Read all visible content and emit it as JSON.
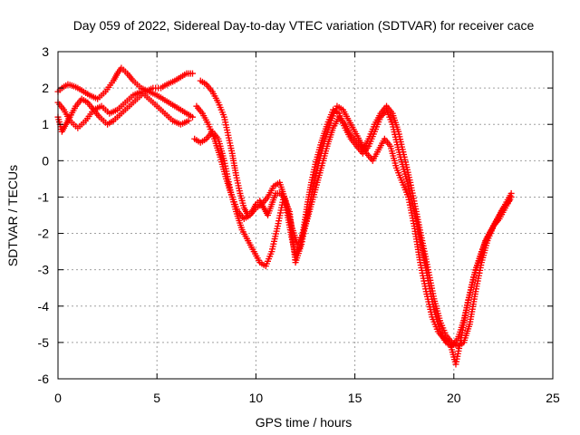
{
  "chart_data": {
    "type": "scatter",
    "title": "Day 059 of 2022, Sidereal Day-to-day VTEC variation (SDTVAR) for receiver cace",
    "xlabel": "GPS time / hours",
    "ylabel": "SDTVAR / TECUs",
    "xlim": [
      0,
      25
    ],
    "ylim": [
      -6,
      3
    ],
    "xticks": [
      0,
      5,
      10,
      15,
      20,
      25
    ],
    "yticks": [
      -6,
      -5,
      -4,
      -3,
      -2,
      -1,
      0,
      1,
      2,
      3
    ],
    "grid": true,
    "legend": "none",
    "marker": "+",
    "color": "#ff0000",
    "series": [
      {
        "x": [
          0,
          0.2,
          0.5,
          0.8,
          1.0,
          1.3,
          1.6,
          2.0,
          2.4,
          2.8,
          3.0,
          3.2,
          3.5,
          3.8,
          4.2,
          4.6,
          5.0,
          5.3,
          5.6,
          5.9,
          6.2,
          6.5,
          6.8
        ],
        "y": [
          1.9,
          2.0,
          2.1,
          2.05,
          2.0,
          1.9,
          1.8,
          1.7,
          1.9,
          2.2,
          2.4,
          2.55,
          2.4,
          2.2,
          2.0,
          1.9,
          1.8,
          1.7,
          1.6,
          1.5,
          1.4,
          1.3,
          1.2
        ]
      },
      {
        "x": [
          0,
          0.2,
          0.4,
          0.6,
          0.9,
          1.2,
          1.5,
          1.8,
          2.1,
          2.5,
          2.8,
          3.2,
          3.6,
          4.0,
          4.4,
          4.8,
          5.2,
          5.5,
          5.9,
          6.2,
          6.5,
          6.8
        ],
        "y": [
          1.2,
          0.8,
          1.0,
          1.2,
          1.5,
          1.7,
          1.6,
          1.4,
          1.2,
          1.0,
          1.1,
          1.3,
          1.5,
          1.7,
          1.9,
          2.0,
          2.0,
          2.1,
          2.2,
          2.3,
          2.4,
          2.4
        ]
      },
      {
        "x": [
          0,
          0.3,
          0.6,
          1.0,
          1.4,
          1.8,
          2.2,
          2.6,
          3.0,
          3.4,
          3.8,
          4.2,
          4.6,
          5.0,
          5.4,
          5.8,
          6.2,
          6.6
        ],
        "y": [
          1.6,
          1.4,
          1.1,
          0.9,
          1.1,
          1.4,
          1.5,
          1.3,
          1.4,
          1.6,
          1.8,
          1.9,
          1.7,
          1.5,
          1.3,
          1.1,
          1.0,
          1.1
        ]
      },
      {
        "x": [
          7.2,
          7.5,
          7.8,
          8.1,
          8.4,
          8.6,
          8.8,
          9.0,
          9.2,
          9.4,
          9.6,
          9.8,
          10.0,
          10.2,
          10.4,
          10.6,
          10.8,
          11.0,
          11.2,
          11.4,
          11.6,
          11.8,
          12.0,
          12.2,
          12.4,
          12.6,
          12.8,
          13.0,
          13.3,
          13.6,
          13.9,
          14.2,
          14.5,
          14.8,
          15.1,
          15.4,
          15.7,
          16.0,
          16.3,
          16.6,
          16.9,
          17.2,
          17.5,
          17.8,
          18.1,
          18.4,
          18.7,
          19.0,
          19.3,
          19.6,
          19.9,
          20.2,
          20.5,
          20.8,
          21.1,
          21.4,
          21.7,
          22.0,
          22.3,
          22.6,
          22.9
        ],
        "y": [
          2.2,
          2.1,
          1.9,
          1.6,
          1.2,
          0.7,
          0.2,
          -0.4,
          -0.9,
          -1.3,
          -1.5,
          -1.4,
          -1.2,
          -1.1,
          -1.3,
          -1.5,
          -1.2,
          -0.9,
          -0.9,
          -1.0,
          -1.5,
          -2.1,
          -2.6,
          -2.4,
          -1.9,
          -1.2,
          -0.6,
          -0.1,
          0.5,
          1.0,
          1.4,
          1.3,
          0.9,
          0.6,
          0.4,
          0.2,
          0.4,
          0.8,
          1.2,
          1.4,
          1.0,
          0.3,
          -0.3,
          -0.9,
          -1.6,
          -2.4,
          -3.3,
          -4.1,
          -4.7,
          -5.0,
          -5.1,
          -4.9,
          -4.4,
          -3.7,
          -3.0,
          -2.5,
          -2.1,
          -1.8,
          -1.6,
          -1.3,
          -1.0
        ]
      },
      {
        "x": [
          7.0,
          7.3,
          7.6,
          7.9,
          8.2,
          8.5,
          8.8,
          9.1,
          9.4,
          9.7,
          10.0,
          10.3,
          10.6,
          10.9,
          11.2,
          11.5,
          11.8,
          12.1,
          12.4,
          12.7,
          13.0,
          13.3,
          13.6,
          13.9,
          14.2,
          14.5,
          14.8,
          15.1,
          15.4,
          15.7,
          16.0,
          16.3,
          16.6,
          16.9,
          17.2,
          17.5,
          17.8,
          18.1,
          18.4,
          18.7,
          19.0,
          19.3,
          19.6,
          19.9,
          20.2,
          20.5,
          20.8,
          21.1,
          21.4,
          21.7,
          22.0,
          22.3,
          22.6,
          22.9
        ],
        "y": [
          1.5,
          1.3,
          1.0,
          0.6,
          0.1,
          -0.5,
          -1.0,
          -1.4,
          -1.6,
          -1.5,
          -1.3,
          -1.2,
          -1.0,
          -0.7,
          -0.6,
          -1.1,
          -1.8,
          -2.3,
          -2.0,
          -1.4,
          -0.8,
          -0.2,
          0.4,
          0.9,
          1.2,
          1.0,
          0.7,
          0.5,
          0.3,
          0.6,
          1.0,
          1.3,
          1.5,
          1.3,
          0.8,
          0.1,
          -0.6,
          -1.4,
          -2.2,
          -3.0,
          -3.8,
          -4.4,
          -4.8,
          -5.0,
          -5.1,
          -5.0,
          -4.5,
          -3.6,
          -2.8,
          -2.2,
          -1.8,
          -1.5,
          -1.2,
          -0.9
        ]
      },
      {
        "x": [
          6.9,
          7.2,
          7.5,
          7.8,
          8.1,
          8.4,
          8.7,
          9.0,
          9.3,
          9.6,
          9.9,
          10.2,
          10.5,
          10.8,
          11.1,
          11.4,
          11.7,
          12.0,
          12.3,
          12.6,
          12.9,
          13.2,
          13.5,
          13.8,
          14.1,
          14.4,
          14.7,
          15.0,
          15.3,
          15.6,
          15.9,
          16.2,
          16.5,
          16.8,
          17.1,
          17.4,
          17.7,
          18.0,
          18.3,
          18.6,
          18.9,
          19.2,
          19.5,
          19.8,
          20.1,
          20.4,
          20.7,
          21.0,
          21.3,
          21.6,
          21.9,
          22.2,
          22.5,
          22.8
        ],
        "y": [
          0.6,
          0.5,
          0.6,
          0.8,
          0.6,
          0.0,
          -0.8,
          -1.4,
          -1.9,
          -2.2,
          -2.5,
          -2.8,
          -2.9,
          -2.5,
          -1.8,
          -1.0,
          -1.4,
          -2.8,
          -2.3,
          -1.5,
          -0.7,
          0.0,
          0.6,
          1.1,
          1.5,
          1.4,
          1.1,
          0.8,
          0.5,
          0.2,
          0.0,
          0.3,
          0.6,
          0.4,
          -0.2,
          -0.6,
          -1.0,
          -1.8,
          -2.8,
          -3.6,
          -4.3,
          -4.7,
          -4.9,
          -5.0,
          -5.6,
          -4.8,
          -3.9,
          -3.2,
          -2.7,
          -2.2,
          -1.9,
          -1.6,
          -1.3,
          -1.1
        ]
      }
    ]
  }
}
